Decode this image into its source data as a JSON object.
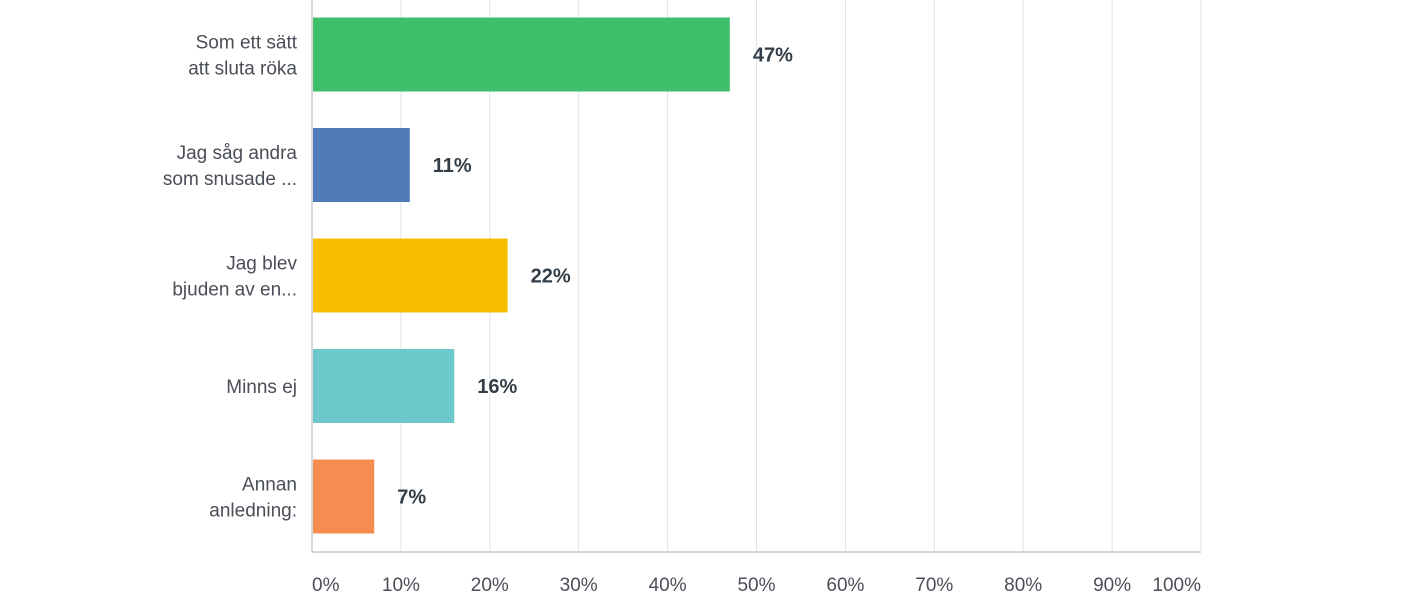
{
  "chart_data": {
    "type": "bar",
    "orientation": "horizontal",
    "categories": [
      [
        "Som ett sätt",
        "att sluta röka"
      ],
      [
        "Jag såg andra",
        "som snusade ..."
      ],
      [
        "Jag blev",
        "bjuden av en..."
      ],
      [
        "Minns ej"
      ],
      [
        "Annan",
        "anledning:"
      ]
    ],
    "values": [
      47,
      11,
      22,
      16,
      7
    ],
    "value_labels": [
      "47%",
      "11%",
      "22%",
      "16%",
      "7%"
    ],
    "colors": [
      "#40bf6b",
      "#4f7bb8",
      "#f7be00",
      "#6cc8cb",
      "#f78c50"
    ],
    "xlim": [
      0,
      100
    ],
    "xticks": [
      0,
      10,
      20,
      30,
      40,
      50,
      60,
      70,
      80,
      90,
      100
    ],
    "xtick_labels": [
      "0%",
      "10%",
      "20%",
      "30%",
      "40%",
      "50%",
      "60%",
      "70%",
      "80%",
      "90%",
      "100%"
    ],
    "grid": true,
    "title": "",
    "xlabel": "",
    "ylabel": ""
  }
}
